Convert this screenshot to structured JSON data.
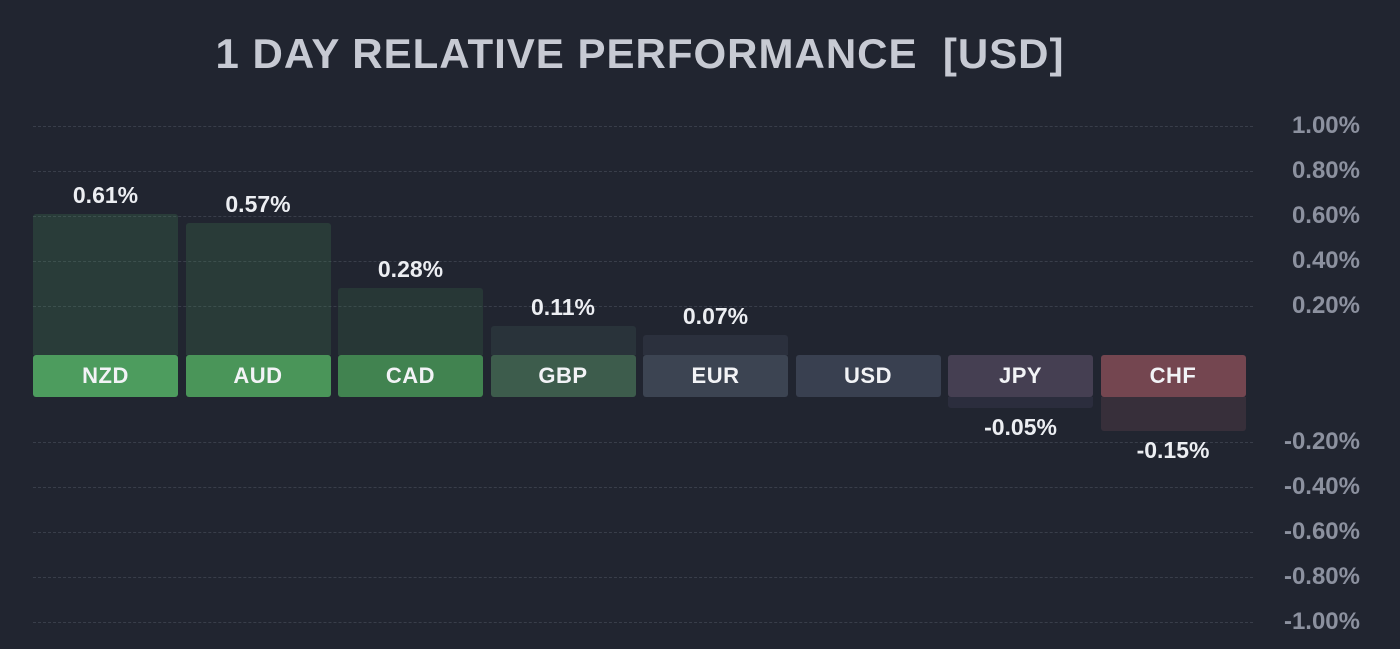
{
  "chart_data": {
    "type": "bar",
    "title": "1 DAY RELATIVE PERFORMANCE  [USD]",
    "categories": [
      "NZD",
      "AUD",
      "CAD",
      "GBP",
      "EUR",
      "USD",
      "JPY",
      "CHF"
    ],
    "values": [
      0.61,
      0.57,
      0.28,
      0.11,
      0.07,
      0.0,
      -0.05,
      -0.15
    ],
    "value_labels": [
      "0.61%",
      "0.57%",
      "0.28%",
      "0.11%",
      "0.07%",
      "",
      "-0.05%",
      "-0.15%"
    ],
    "unit": "%",
    "ylim": [
      -1.0,
      1.0
    ],
    "grid": "dashed-horizontal",
    "legend": "none",
    "y_ticks": [
      {
        "value": 1.0,
        "label": "1.00%"
      },
      {
        "value": 0.8,
        "label": "0.80%"
      },
      {
        "value": 0.6,
        "label": "0.60%"
      },
      {
        "value": 0.4,
        "label": "0.40%"
      },
      {
        "value": 0.2,
        "label": "0.20%"
      },
      {
        "value": -0.2,
        "label": "-0.20%"
      },
      {
        "value": -0.4,
        "label": "-0.40%"
      },
      {
        "value": -0.6,
        "label": "-0.60%"
      },
      {
        "value": -0.8,
        "label": "-0.80%"
      },
      {
        "value": -1.0,
        "label": "-1.00%"
      }
    ],
    "bar_colors": [
      {
        "box": "#4d9c5e",
        "fill": "rgba(77,156,94,0.20)"
      },
      {
        "box": "#4a9559",
        "fill": "rgba(74,149,89,0.20)"
      },
      {
        "box": "#418350",
        "fill": "rgba(65,131,80,0.20)"
      },
      {
        "box": "#3d5c4c",
        "fill": "rgba(90,140,118,0.14)"
      },
      {
        "box": "#3c4452",
        "fill": "rgba(140,152,178,0.10)"
      },
      {
        "box": "#394050",
        "fill": "rgba(0,0,0,0)"
      },
      {
        "box": "#453f52",
        "fill": "rgba(142,122,172,0.10)"
      },
      {
        "box": "#744650",
        "fill": "rgba(192,112,122,0.14)"
      }
    ],
    "colors": {
      "background": "#212530",
      "title": "#c7cad3",
      "tick_label": "#8c919f",
      "value_label": "#eceef2",
      "gridline": "rgba(165,175,195,0.18)"
    }
  }
}
